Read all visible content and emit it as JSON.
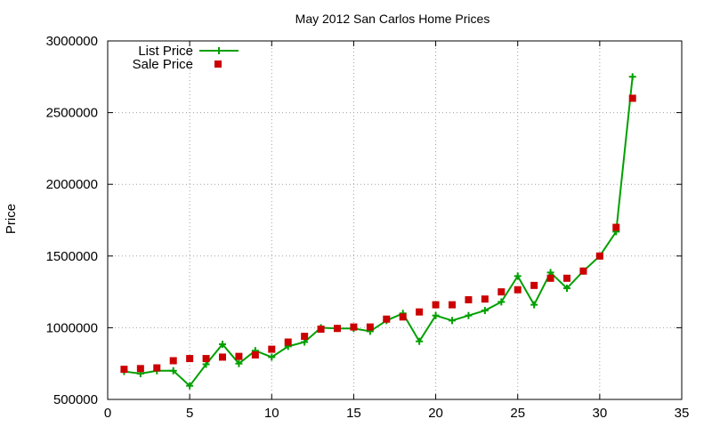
{
  "chart_data": {
    "type": "line",
    "title": "May 2012 San Carlos Home Prices",
    "xlabel": "",
    "ylabel": "Price",
    "xlim": [
      0,
      35
    ],
    "ylim": [
      500000,
      3000000
    ],
    "x_ticks": [
      0,
      5,
      10,
      15,
      20,
      25,
      30,
      35
    ],
    "y_ticks": [
      500000,
      1000000,
      1500000,
      2000000,
      2500000,
      3000000
    ],
    "grid": true,
    "legend_position": "top-left",
    "series": [
      {
        "name": "List Price",
        "style": "line-plus",
        "color": "#00a000",
        "x": [
          1,
          2,
          3,
          4,
          5,
          6,
          7,
          8,
          9,
          10,
          11,
          12,
          13,
          14,
          15,
          16,
          17,
          18,
          19,
          20,
          21,
          22,
          23,
          24,
          25,
          26,
          27,
          28,
          29,
          30,
          31,
          32
        ],
        "values": [
          695000,
          680000,
          700000,
          700000,
          595000,
          745000,
          885000,
          750000,
          840000,
          795000,
          870000,
          900000,
          1000000,
          995000,
          995000,
          975000,
          1050000,
          1100000,
          905000,
          1085000,
          1050000,
          1085000,
          1120000,
          1180000,
          1360000,
          1160000,
          1385000,
          1275000,
          1395000,
          1500000,
          1670000,
          2750000
        ]
      },
      {
        "name": "Sale Price",
        "style": "square",
        "color": "#cc0000",
        "x": [
          1,
          2,
          3,
          4,
          5,
          6,
          7,
          8,
          9,
          10,
          11,
          12,
          13,
          14,
          15,
          16,
          17,
          18,
          19,
          20,
          21,
          22,
          23,
          24,
          25,
          26,
          27,
          28,
          29,
          30,
          31,
          32
        ],
        "values": [
          710000,
          715000,
          720000,
          770000,
          785000,
          785000,
          795000,
          800000,
          810000,
          850000,
          900000,
          940000,
          990000,
          995000,
          1005000,
          1005000,
          1060000,
          1075000,
          1110000,
          1160000,
          1160000,
          1195000,
          1200000,
          1250000,
          1265000,
          1295000,
          1345000,
          1345000,
          1395000,
          1500000,
          1700000,
          2600000
        ]
      }
    ]
  }
}
